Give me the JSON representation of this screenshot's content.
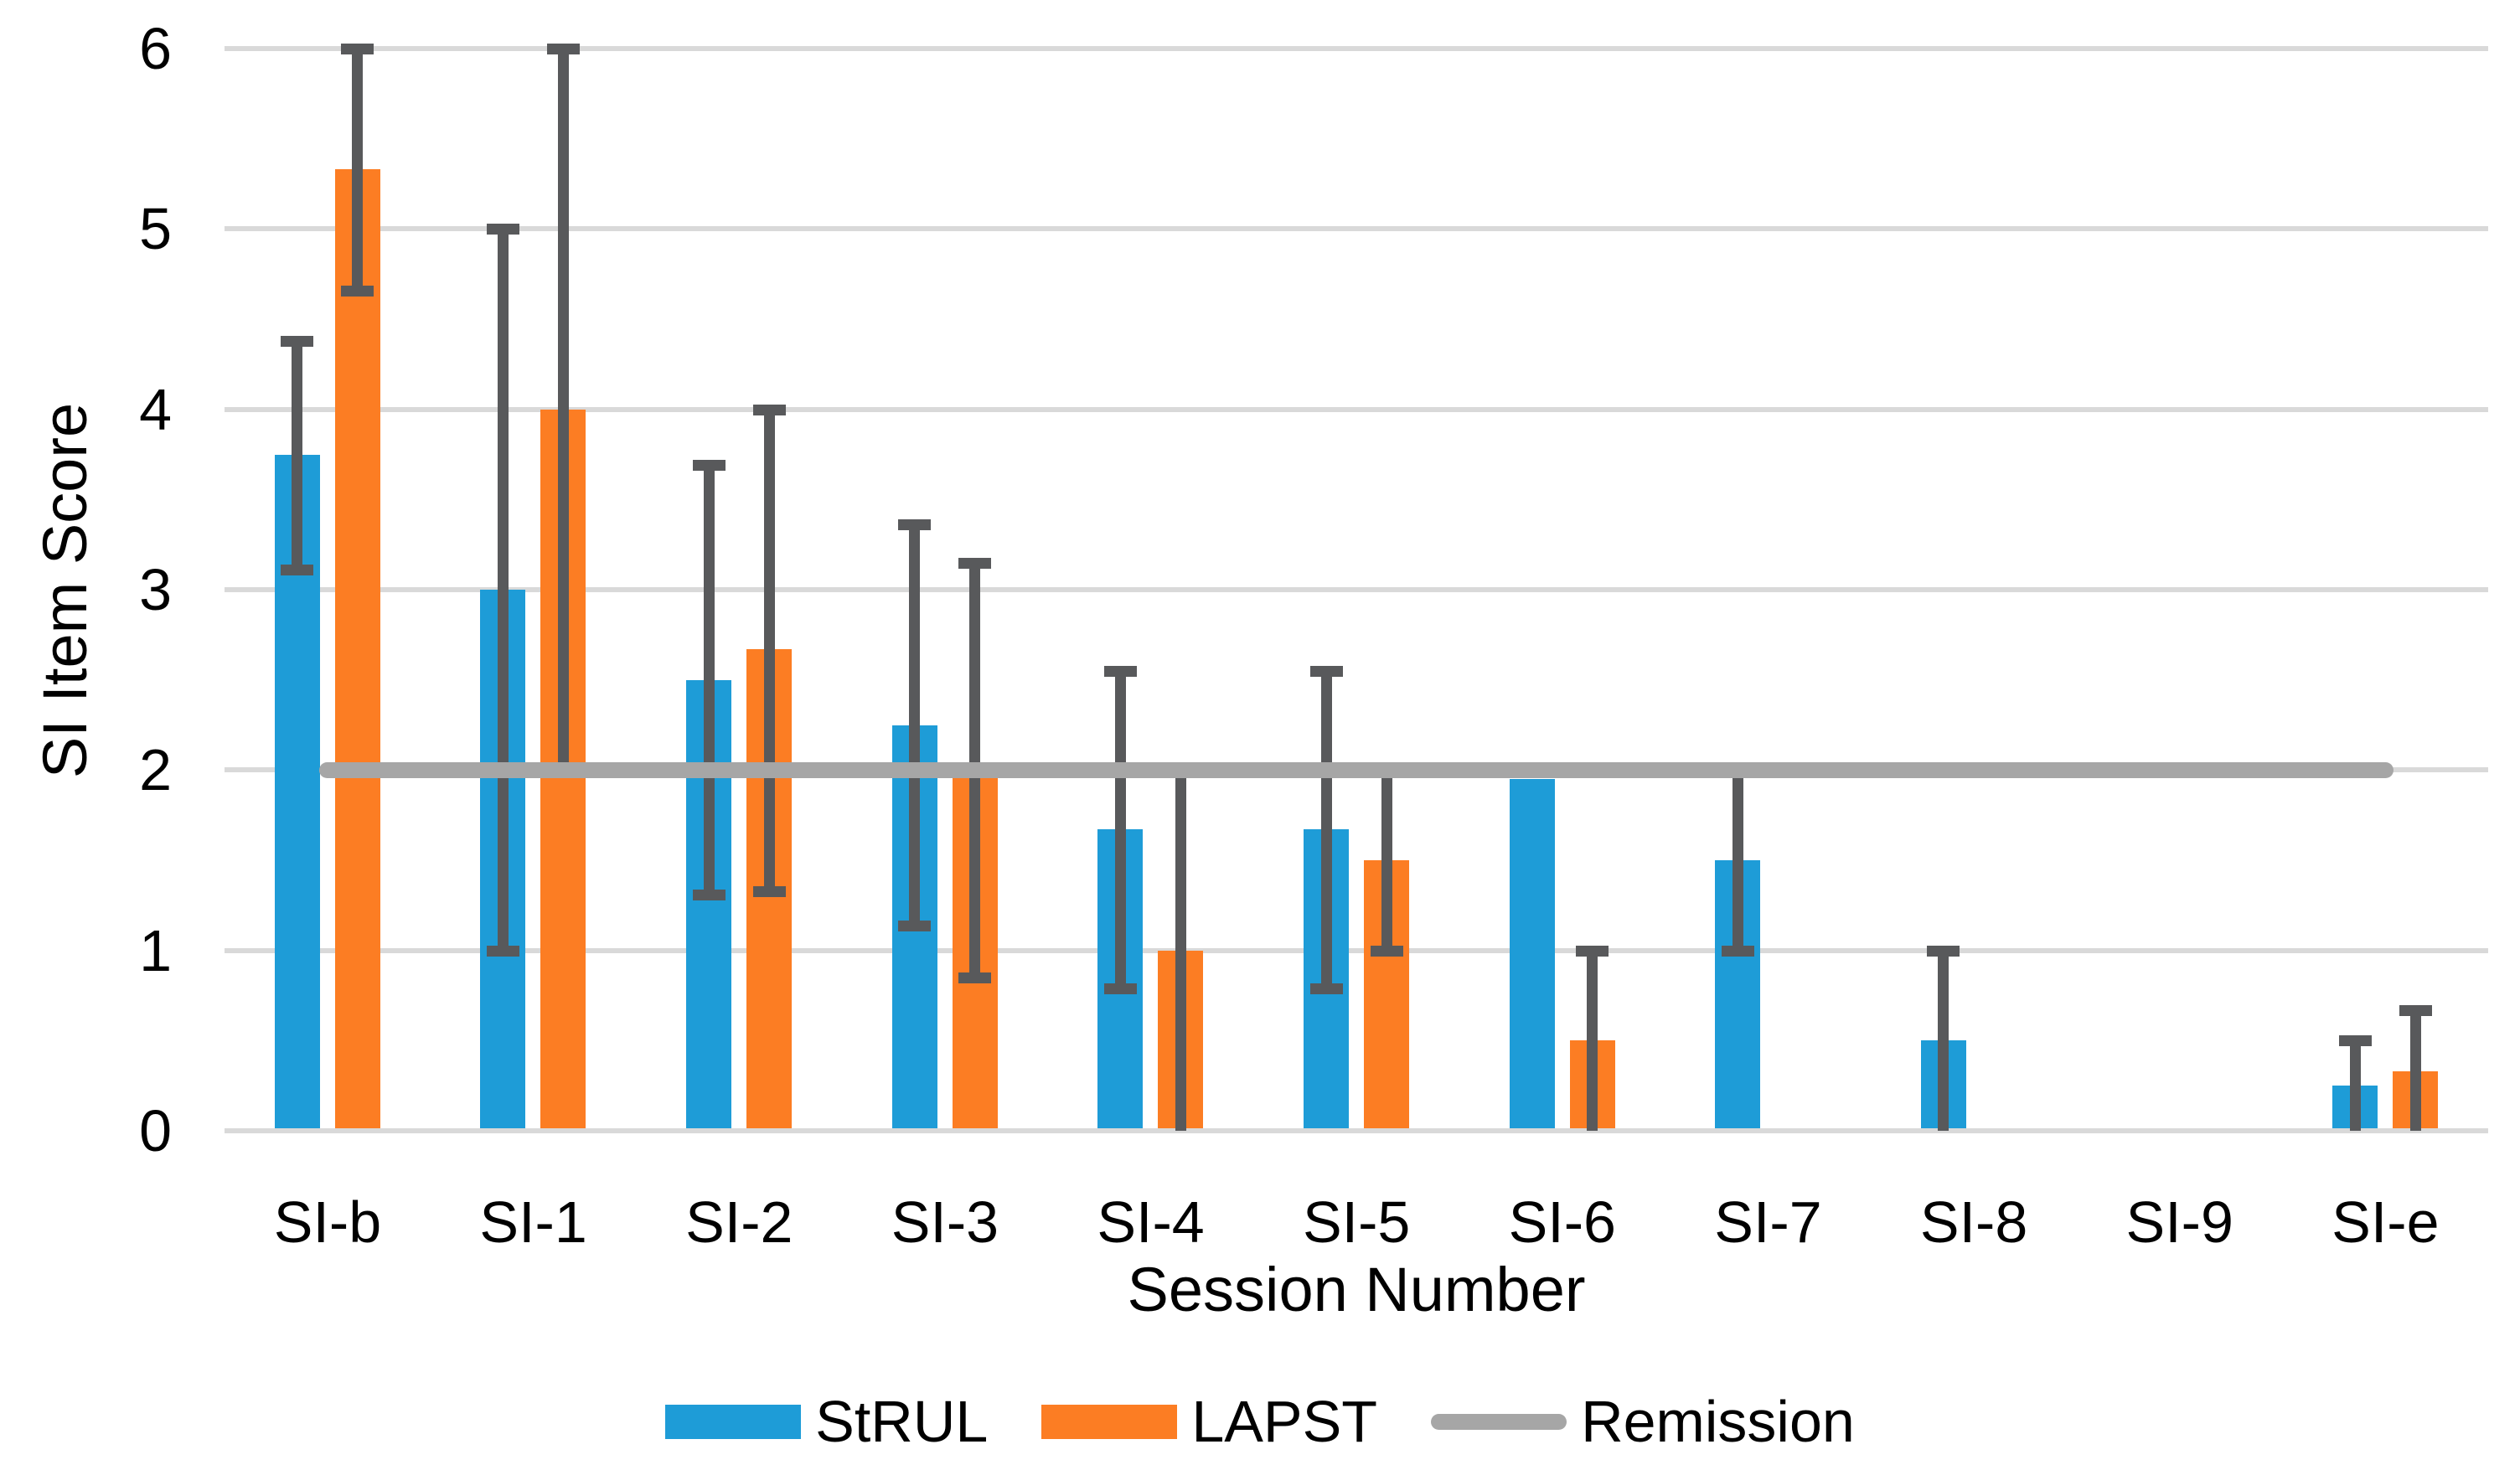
{
  "chart_data": {
    "type": "bar",
    "title": "",
    "xlabel": "Session Number",
    "ylabel": "SI Item Score",
    "ylim": [
      0,
      6
    ],
    "yticks": [
      0,
      1,
      2,
      3,
      4,
      5,
      6
    ],
    "grid": true,
    "legend_position": "bottom",
    "categories": [
      "SI-b",
      "SI-1",
      "SI-2",
      "SI-3",
      "SI-4",
      "SI-5",
      "SI-6",
      "SI-7",
      "SI-8",
      "SI-9",
      "SI-e"
    ],
    "series": [
      {
        "name": "StRUL",
        "type": "bar",
        "color": "#1e9cd7",
        "values": [
          3.75,
          3.0,
          2.5,
          2.25,
          1.67,
          1.67,
          1.95,
          1.5,
          0.5,
          0,
          0.25
        ],
        "error_low": [
          3.11,
          1.0,
          1.31,
          1.14,
          0.79,
          0.79,
          null,
          1.0,
          0.0,
          null,
          0.0
        ],
        "error_high": [
          4.38,
          5.0,
          3.69,
          3.36,
          2.55,
          2.55,
          null,
          2.0,
          1.0,
          null,
          0.5
        ]
      },
      {
        "name": "LAPST",
        "type": "bar",
        "color": "#fc7d23",
        "values": [
          5.33,
          4.0,
          2.67,
          2.0,
          1.0,
          1.5,
          0.5,
          0,
          0,
          0,
          0.33
        ],
        "error_low": [
          4.66,
          2.0,
          1.33,
          0.85,
          0.0,
          1.0,
          0.0,
          null,
          null,
          null,
          0.0
        ],
        "error_high": [
          6.0,
          6.0,
          4.0,
          3.15,
          2.0,
          2.0,
          1.0,
          null,
          null,
          null,
          0.67
        ]
      },
      {
        "name": "Remission",
        "type": "line",
        "color": "#a6a6a6",
        "value": 2.0
      }
    ]
  },
  "axes": {
    "x_title": "Session Number",
    "y_title": "SI Item Score"
  },
  "style_colors": {
    "gridline": "#d9d9d9",
    "error_bar": "#58595b",
    "text": "#000000"
  }
}
